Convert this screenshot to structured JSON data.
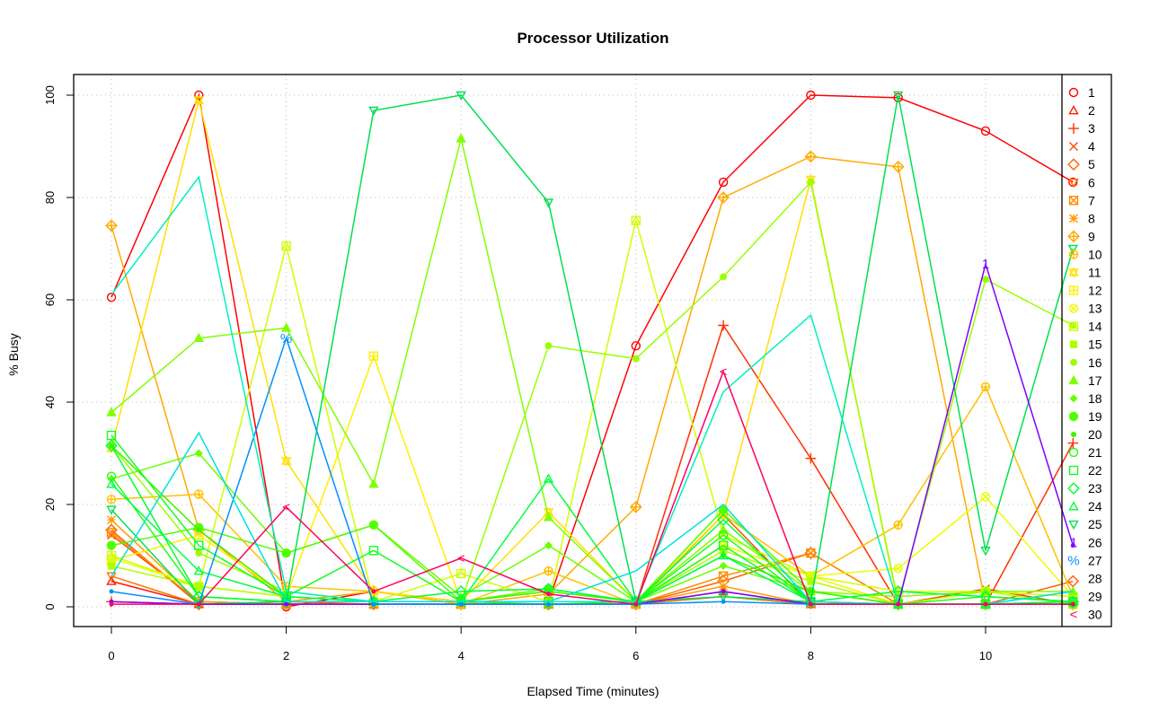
{
  "chart_data": {
    "type": "line",
    "title": "Processor Utilization",
    "xlabel": "Elapsed Time (minutes)",
    "ylabel": "% Busy",
    "xlim": [
      -0.45,
      11.4
    ],
    "ylim": [
      -4,
      104
    ],
    "xticks": [
      0,
      2,
      4,
      6,
      8,
      10
    ],
    "yticks": [
      0,
      20,
      40,
      60,
      80,
      100
    ],
    "grid": true,
    "legend_position": "right",
    "x": [
      0,
      1,
      2,
      3,
      4,
      5,
      6,
      7,
      8,
      9,
      10,
      11
    ],
    "series": [
      {
        "name": "1",
        "color": "#ff0000",
        "pch": "circle",
        "values": [
          60.5,
          100,
          0,
          3,
          1,
          1,
          51,
          83,
          100,
          99.5,
          93,
          83
        ]
      },
      {
        "name": "2",
        "color": "#ff1a00",
        "pch": "triangle",
        "values": [
          5,
          0.5,
          0.5,
          0.5,
          0.5,
          0.5,
          0.5,
          3,
          0.5,
          0.5,
          0.5,
          0.5
        ]
      },
      {
        "name": "3",
        "color": "#ff3000",
        "pch": "plus",
        "values": [
          1,
          0.5,
          0.5,
          0.5,
          0.5,
          0.5,
          0.5,
          55,
          29,
          0.5,
          0.5,
          32
        ]
      },
      {
        "name": "4",
        "color": "#ff4a00",
        "pch": "x",
        "values": [
          14,
          1,
          0.5,
          0.5,
          0.5,
          0.5,
          0.5,
          18,
          0.5,
          0.5,
          3.5,
          0.5
        ]
      },
      {
        "name": "5",
        "color": "#ff6000",
        "pch": "diamond",
        "values": [
          15,
          0.5,
          1,
          0.5,
          0.5,
          0.5,
          0.5,
          5,
          10.5,
          0.5,
          0.5,
          5
        ]
      },
      {
        "name": "6",
        "color": "#ff7000",
        "pch": "invtriangle",
        "values": [
          6,
          0.5,
          0.5,
          0.5,
          0.5,
          0.5,
          0.5,
          2,
          0.5,
          0.5,
          0.5,
          0.5
        ]
      },
      {
        "name": "7",
        "color": "#ff8a00",
        "pch": "squarex",
        "values": [
          14.5,
          1,
          0.5,
          0.5,
          0.5,
          0.5,
          0.5,
          6,
          10.5,
          0.5,
          0.5,
          0.5
        ]
      },
      {
        "name": "8",
        "color": "#ff9a00",
        "pch": "asterisk",
        "values": [
          17,
          1,
          0.5,
          0.5,
          0.5,
          0.5,
          0.5,
          4,
          0.5,
          0.5,
          0.5,
          0.5
        ]
      },
      {
        "name": "9",
        "color": "#ffaa00",
        "pch": "diamondplus",
        "values": [
          74.5,
          15,
          1,
          3,
          0.5,
          2.5,
          19.5,
          80,
          88,
          86,
          0.5,
          0.5
        ]
      },
      {
        "name": "10",
        "color": "#ffc000",
        "pch": "circleplus",
        "values": [
          21,
          22,
          4,
          3,
          0.5,
          7,
          0.5,
          18,
          6,
          16,
          43,
          2
        ]
      },
      {
        "name": "11",
        "color": "#ffe000",
        "pch": "star",
        "values": [
          31,
          99,
          28.5,
          3,
          1,
          18.5,
          1,
          18,
          83.5,
          0.5,
          0.5,
          0.5
        ]
      },
      {
        "name": "12",
        "color": "#fff000",
        "pch": "squareplus",
        "values": [
          9,
          14,
          2,
          49,
          1,
          1,
          1,
          12,
          6,
          0.5,
          0.5,
          0.5
        ]
      },
      {
        "name": "13",
        "color": "#eaff00",
        "pch": "circlex",
        "values": [
          9.5,
          4,
          2,
          1,
          1,
          1,
          1,
          12,
          6,
          7.5,
          21.5,
          2
        ]
      },
      {
        "name": "14",
        "color": "#d0ff00",
        "pch": "squaretri",
        "values": [
          10,
          4,
          70.5,
          1,
          6.5,
          1,
          75.5,
          14,
          6,
          3,
          3,
          2
        ]
      },
      {
        "name": "15",
        "color": "#b0ff00",
        "pch": "filledsquare",
        "values": [
          8,
          4,
          2,
          1,
          1,
          1,
          1,
          11,
          5,
          0.5,
          3,
          0.5
        ]
      },
      {
        "name": "16",
        "color": "#9aff00",
        "pch": "filledcircle",
        "values": [
          31.5,
          10.5,
          3,
          1,
          1,
          51,
          48.5,
          64.5,
          83,
          1,
          64,
          55
        ]
      },
      {
        "name": "17",
        "color": "#80ff00",
        "pch": "filledtriangle",
        "values": [
          38,
          52.5,
          54.5,
          24,
          91.5,
          17.5,
          1,
          15,
          3,
          2,
          3,
          3
        ]
      },
      {
        "name": "18",
        "color": "#6aff00",
        "pch": "smalldiamond",
        "values": [
          25,
          30,
          10.5,
          16,
          2,
          12,
          1,
          8,
          3,
          0.5,
          0.5,
          0.5
        ]
      },
      {
        "name": "19",
        "color": "#50ff00",
        "pch": "bigcircle",
        "values": [
          12,
          15.5,
          10.5,
          16,
          1,
          3.5,
          1,
          19,
          3,
          0.5,
          0.5,
          0.5
        ]
      },
      {
        "name": "20",
        "color": "#40f000",
        "pch": "smallcircle",
        "values": [
          31.5,
          15,
          2,
          1,
          1,
          3,
          1,
          10,
          3,
          0.5,
          0.5,
          0.5
        ]
      },
      {
        "name": "21",
        "color": "#20ff10",
        "pch": "circle",
        "values": [
          25.5,
          2,
          1,
          1,
          1,
          0.5,
          1,
          14,
          1,
          0.5,
          2,
          1
        ]
      },
      {
        "name": "22",
        "color": "#10ff20",
        "pch": "square",
        "values": [
          33.5,
          12,
          2,
          11,
          1,
          1,
          1,
          12,
          1,
          0.5,
          0.5,
          1
        ]
      },
      {
        "name": "23",
        "color": "#00ff30",
        "pch": "diamond",
        "values": [
          31.5,
          2,
          1,
          1,
          3,
          3.5,
          1,
          17,
          1,
          3,
          2,
          1
        ]
      },
      {
        "name": "24",
        "color": "#00ff40",
        "pch": "triangle",
        "values": [
          24,
          7,
          2,
          1,
          1,
          25,
          1,
          10,
          1,
          0.5,
          0.5,
          1
        ]
      },
      {
        "name": "25",
        "color": "#00e050",
        "pch": "invtriangle",
        "values": [
          19,
          0.5,
          1,
          97,
          100,
          79,
          1,
          2,
          1,
          100,
          11,
          70
        ]
      },
      {
        "name": "26",
        "color": "#8000ff",
        "pch": "char:1",
        "values": [
          1,
          0.5,
          0.5,
          0.5,
          0.5,
          0.5,
          0.5,
          3,
          0.5,
          0.5,
          67,
          12
        ]
      },
      {
        "name": "27",
        "color": "#0090ff",
        "pch": "char:%",
        "values": [
          3,
          0.5,
          52.5,
          0.5,
          0.5,
          0.5,
          0.5,
          1,
          0.5,
          0.5,
          0.5,
          0.5
        ]
      },
      {
        "name": "28",
        "color": "#00f0c0",
        "pch": "none",
        "values": [
          61,
          84,
          3,
          1,
          1,
          1,
          1,
          42,
          57,
          0.5,
          0.5,
          3
        ]
      },
      {
        "name": "29",
        "color": "#00e0e0",
        "pch": "none",
        "values": [
          6,
          34,
          1,
          1,
          1,
          1,
          7,
          20,
          1,
          0.5,
          0.5,
          3
        ]
      },
      {
        "name": "30",
        "color": "#ff0060",
        "pch": "char:<",
        "values": [
          0.5,
          0.5,
          19.5,
          3,
          9.5,
          2.5,
          0.5,
          46,
          0.5,
          0.5,
          0.5,
          0.5
        ]
      }
    ]
  }
}
